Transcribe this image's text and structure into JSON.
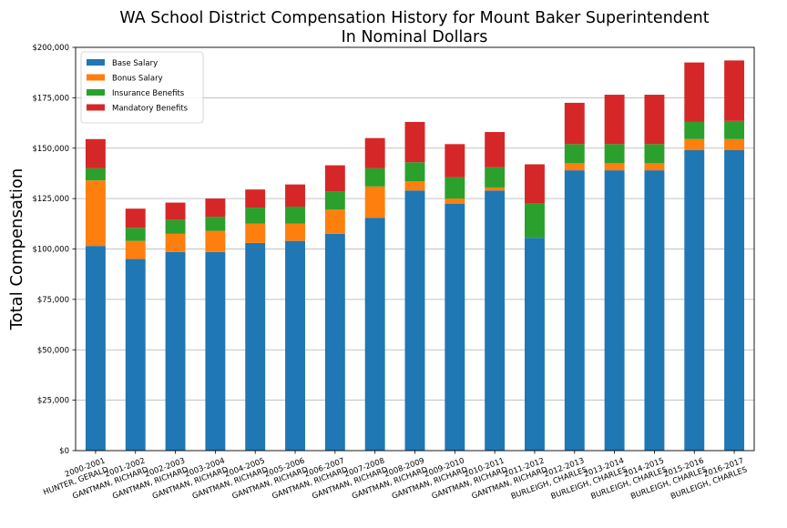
{
  "chart_data": {
    "type": "bar",
    "stacked": true,
    "title": "WA School District Compensation History for Mount Baker Superintendent",
    "subtitle": "In Nominal Dollars",
    "xlabel": "",
    "ylabel": "Total Compensation",
    "ylim": [
      0,
      200000
    ],
    "yticks": [
      0,
      25000,
      50000,
      75000,
      100000,
      125000,
      150000,
      175000,
      200000
    ],
    "ytick_labels": [
      "$0",
      "$25,000",
      "$50,000",
      "$75,000",
      "$100,000",
      "$125,000",
      "$150,000",
      "$175,000",
      "$200,000"
    ],
    "grid": "horizontal",
    "legend_position": "top-left",
    "categories": [
      {
        "year": "2000-2001",
        "name": "HUNTER, GERALD"
      },
      {
        "year": "2001-2002",
        "name": "GANTMAN, RICHARD"
      },
      {
        "year": "2002-2003",
        "name": "GANTMAN, RICHARD"
      },
      {
        "year": "2003-2004",
        "name": "GANTMAN, RICHARD"
      },
      {
        "year": "2004-2005",
        "name": "GANTMAN, RICHARD"
      },
      {
        "year": "2005-2006",
        "name": "GANTMAN, RICHARD"
      },
      {
        "year": "2006-2007",
        "name": "GANTMAN, RICHARD"
      },
      {
        "year": "2007-2008",
        "name": "GANTMAN, RICHARD"
      },
      {
        "year": "2008-2009",
        "name": "GANTMAN, RICHARD"
      },
      {
        "year": "2009-2010",
        "name": "GANTMAN, RICHARD"
      },
      {
        "year": "2010-2011",
        "name": "GANTMAN, RICHARD"
      },
      {
        "year": "2011-2012",
        "name": "GANTMAN, RICHARD"
      },
      {
        "year": "2012-2013",
        "name": "BURLEIGH, CHARLES"
      },
      {
        "year": "2013-2014",
        "name": "BURLEIGH, CHARLES"
      },
      {
        "year": "2014-2015",
        "name": "BURLEIGH, CHARLES"
      },
      {
        "year": "2015-2016",
        "name": "BURLEIGH, CHARLES"
      },
      {
        "year": "2016-2017",
        "name": "BURLEIGH, CHARLES"
      }
    ],
    "series": [
      {
        "name": "Base Salary",
        "color": "#1f77b4",
        "values": [
          101500,
          95000,
          98500,
          98500,
          103000,
          104000,
          107500,
          115500,
          129000,
          122500,
          129000,
          105500,
          139000,
          139000,
          139000,
          149000,
          149000
        ]
      },
      {
        "name": "Bonus Salary",
        "color": "#ff7f0e",
        "values": [
          32500,
          9000,
          9000,
          10500,
          9500,
          8500,
          12000,
          15500,
          4500,
          2500,
          1500,
          0,
          3500,
          3500,
          3500,
          5500,
          5500
        ]
      },
      {
        "name": "Insurance Benefits",
        "color": "#2ca02c",
        "values": [
          6000,
          6500,
          7000,
          7000,
          8000,
          8500,
          9000,
          9000,
          9500,
          10500,
          10000,
          17000,
          9500,
          9500,
          9500,
          8500,
          9000
        ]
      },
      {
        "name": "Mandatory Benefits",
        "color": "#d62728",
        "values": [
          14500,
          9500,
          8500,
          9000,
          9000,
          11000,
          13000,
          15000,
          20000,
          16500,
          17500,
          19500,
          20500,
          24500,
          24500,
          29500,
          30000
        ]
      }
    ]
  }
}
